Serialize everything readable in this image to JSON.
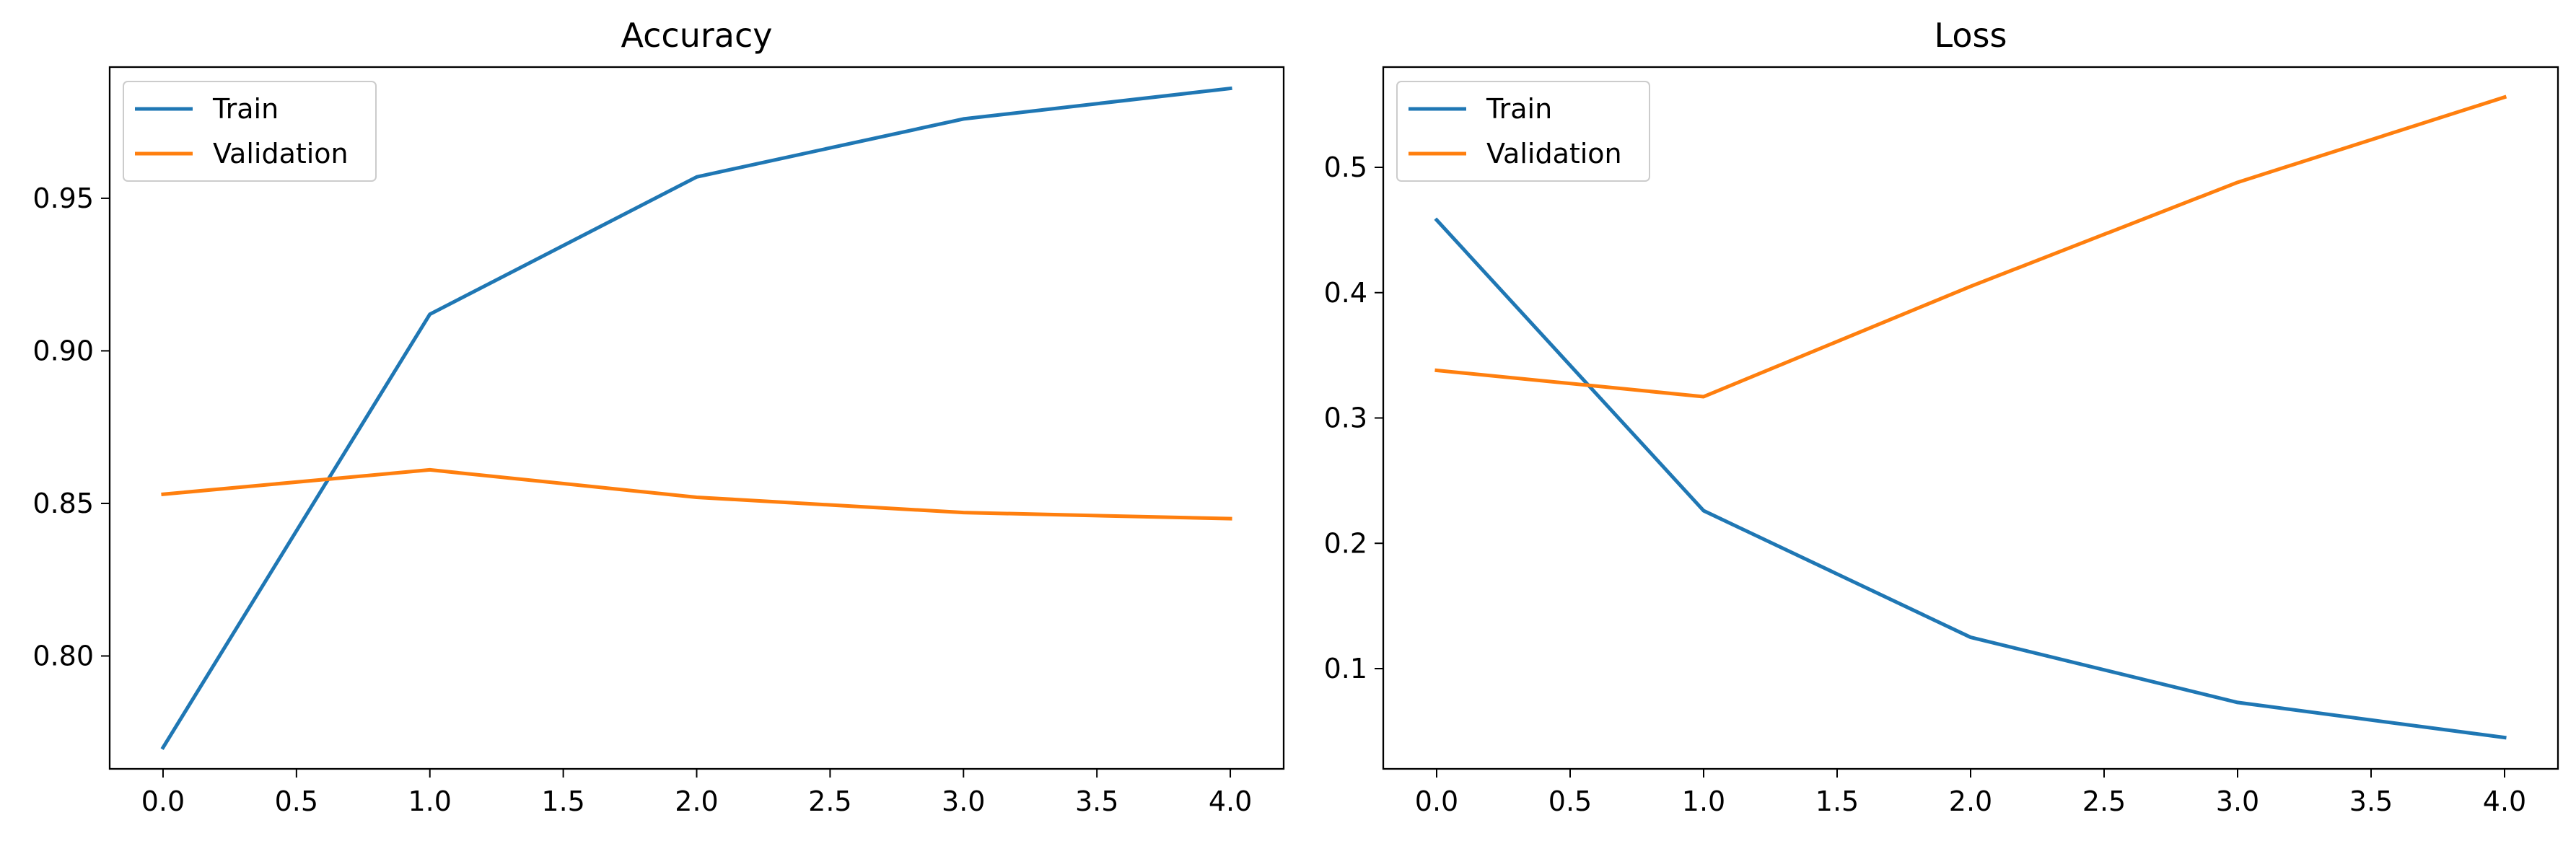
{
  "chart_data": [
    {
      "type": "line",
      "title": "Accuracy",
      "xlabel": "",
      "ylabel": "",
      "x": [
        0,
        1,
        2,
        3,
        4
      ],
      "xlim": [
        -0.2,
        4.2
      ],
      "ylim": [
        0.763,
        0.993
      ],
      "xticks": [
        0.0,
        0.5,
        1.0,
        1.5,
        2.0,
        2.5,
        3.0,
        3.5,
        4.0
      ],
      "xtick_labels": [
        "0.0",
        "0.5",
        "1.0",
        "1.5",
        "2.0",
        "2.5",
        "3.0",
        "3.5",
        "4.0"
      ],
      "yticks": [
        0.8,
        0.85,
        0.9,
        0.95
      ],
      "ytick_labels": [
        "0.80",
        "0.85",
        "0.90",
        "0.95"
      ],
      "grid": false,
      "legend_position": "top-left",
      "series": [
        {
          "name": "Train",
          "color": "#1f77b4",
          "values": [
            0.77,
            0.912,
            0.957,
            0.976,
            0.986
          ]
        },
        {
          "name": "Validation",
          "color": "#ff7f0e",
          "values": [
            0.853,
            0.861,
            0.852,
            0.847,
            0.845
          ]
        }
      ]
    },
    {
      "type": "line",
      "title": "Loss",
      "xlabel": "",
      "ylabel": "",
      "x": [
        0,
        1,
        2,
        3,
        4
      ],
      "xlim": [
        -0.2,
        4.2
      ],
      "ylim": [
        0.02,
        0.58
      ],
      "xticks": [
        0.0,
        0.5,
        1.0,
        1.5,
        2.0,
        2.5,
        3.0,
        3.5,
        4.0
      ],
      "xtick_labels": [
        "0.0",
        "0.5",
        "1.0",
        "1.5",
        "2.0",
        "2.5",
        "3.0",
        "3.5",
        "4.0"
      ],
      "yticks": [
        0.1,
        0.2,
        0.3,
        0.4,
        0.5
      ],
      "ytick_labels": [
        "0.1",
        "0.2",
        "0.3",
        "0.4",
        "0.5"
      ],
      "grid": false,
      "legend_position": "top-left",
      "series": [
        {
          "name": "Train",
          "color": "#1f77b4",
          "values": [
            0.458,
            0.226,
            0.125,
            0.073,
            0.045
          ]
        },
        {
          "name": "Validation",
          "color": "#ff7f0e",
          "values": [
            0.338,
            0.317,
            0.405,
            0.488,
            0.556
          ]
        }
      ]
    }
  ]
}
